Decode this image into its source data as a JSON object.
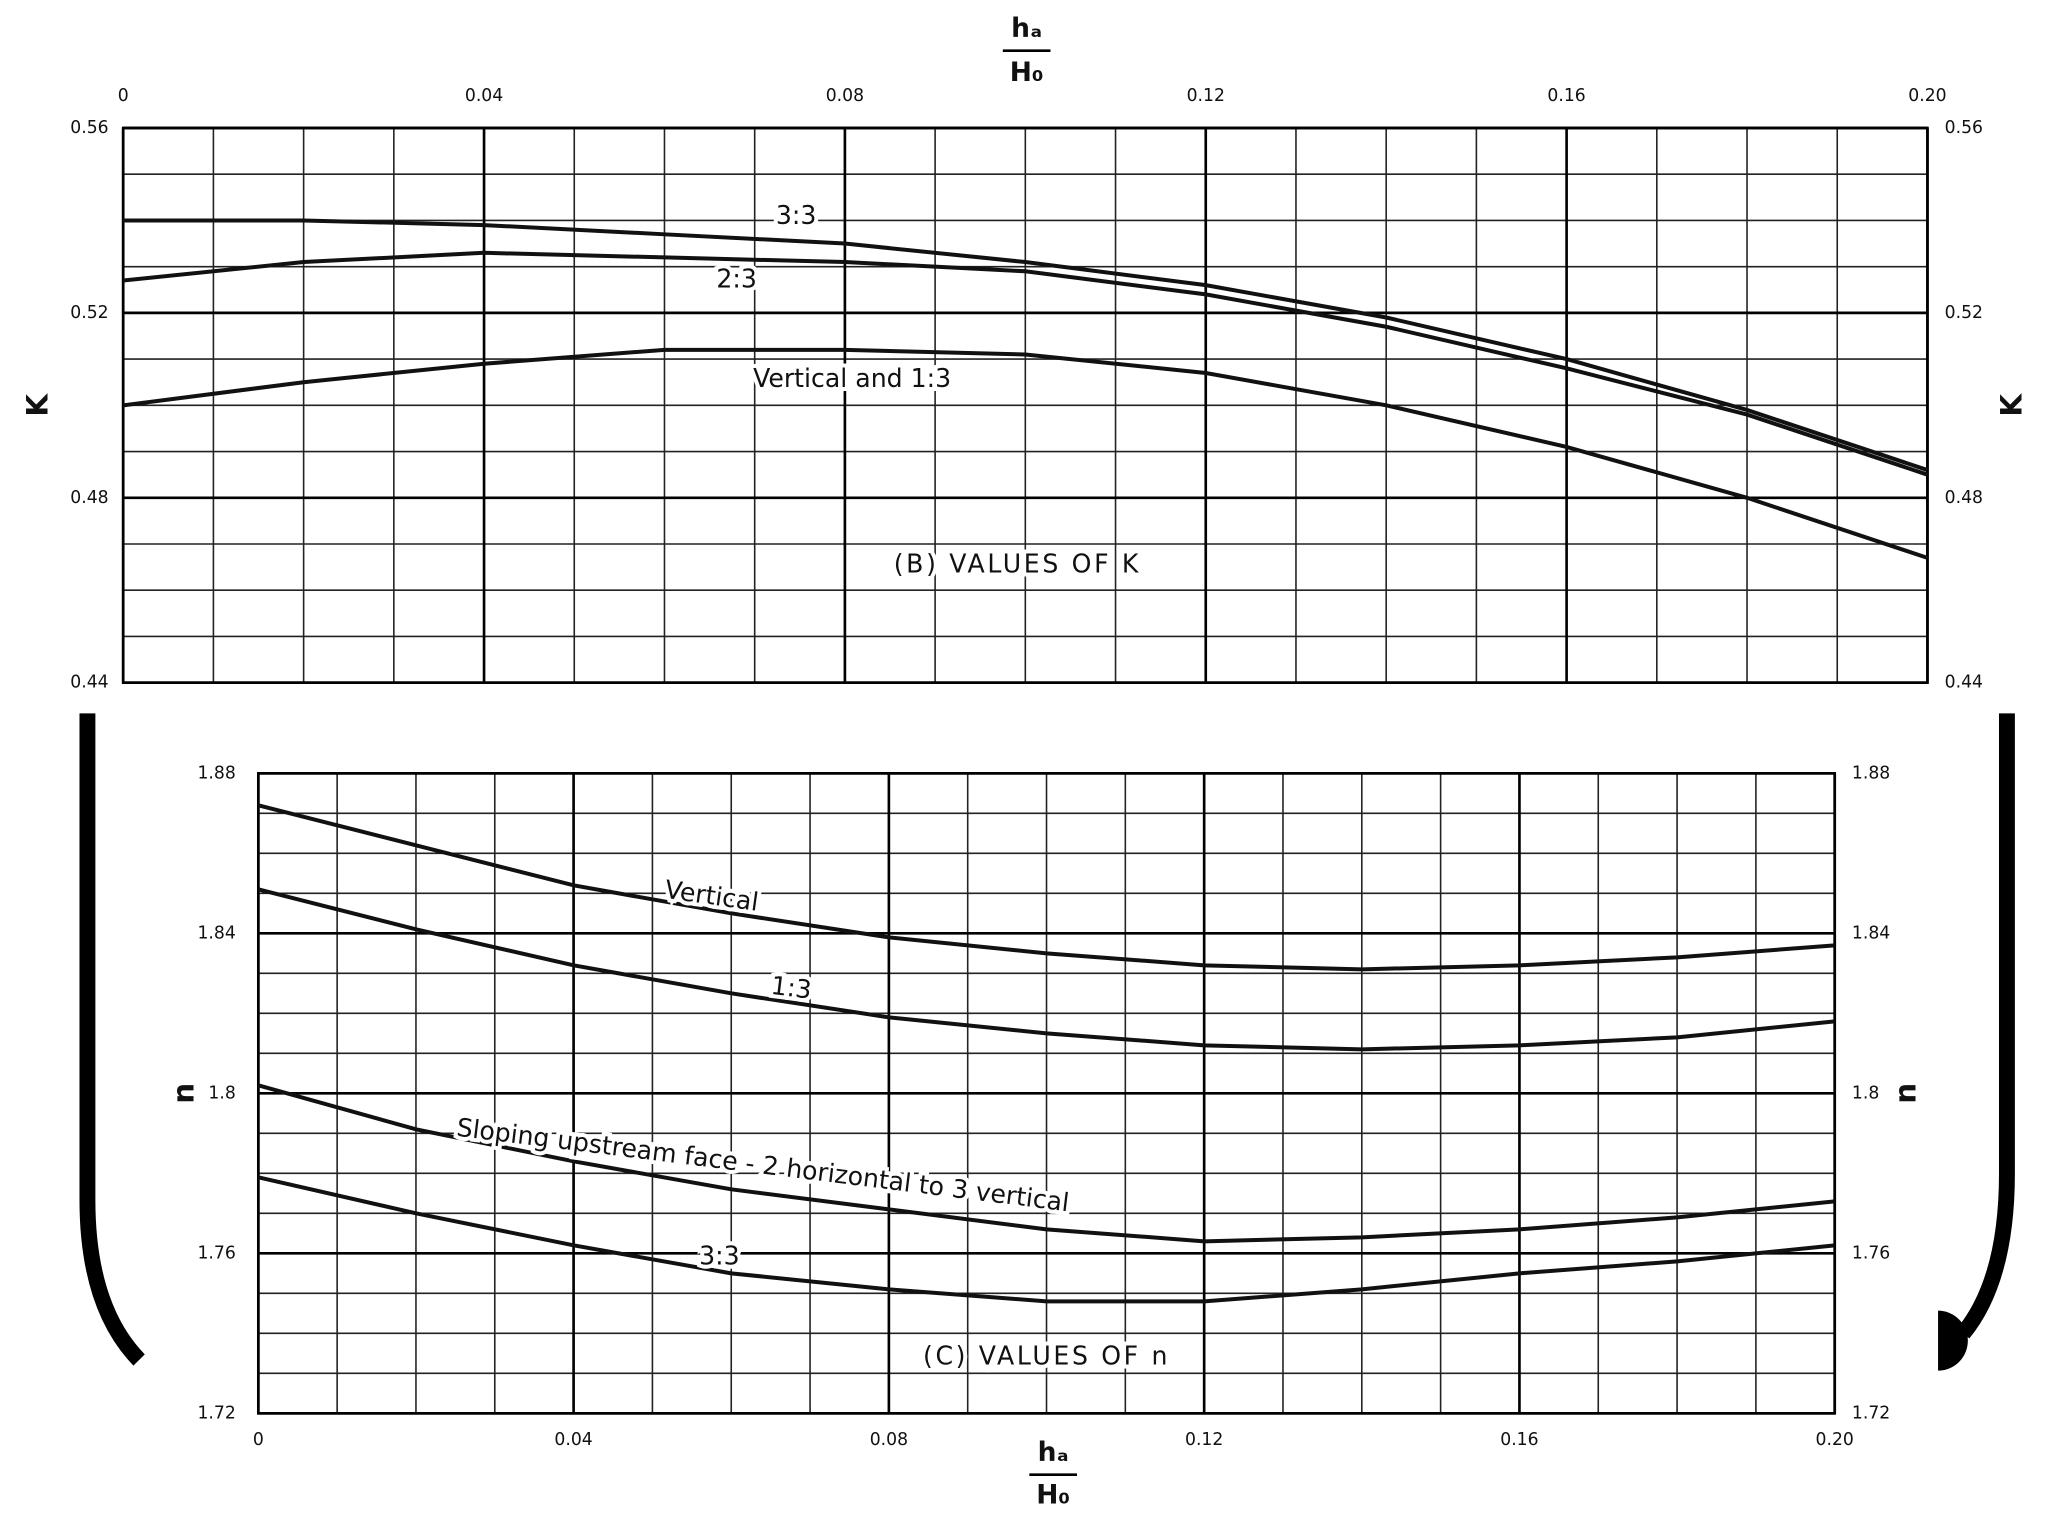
{
  "chart_data": [
    {
      "type": "line",
      "title": "(B) VALUES OF K",
      "ylabel": "K",
      "xlabel_numerator": "hₐ",
      "xlabel_denominator": "H₀",
      "x": [
        0,
        0.02,
        0.04,
        0.06,
        0.08,
        0.1,
        0.12,
        0.14,
        0.16,
        0.18,
        0.2
      ],
      "series": [
        {
          "name": "3:3",
          "color": "#111111",
          "values": [
            0.54,
            0.54,
            0.539,
            0.537,
            0.535,
            0.531,
            0.526,
            0.519,
            0.51,
            0.499,
            0.486
          ]
        },
        {
          "name": "2:3",
          "color": "#111111",
          "values": [
            0.527,
            0.531,
            0.533,
            0.532,
            0.531,
            0.529,
            0.524,
            0.517,
            0.508,
            0.498,
            0.485
          ]
        },
        {
          "name": "Vertical and 1:3",
          "color": "#111111",
          "values": [
            0.5,
            0.505,
            0.509,
            0.512,
            0.512,
            0.511,
            0.507,
            0.5,
            0.491,
            0.48,
            0.467
          ]
        }
      ],
      "xlim": [
        0,
        0.2
      ],
      "xticks": [
        0,
        0.04,
        0.08,
        0.12,
        0.16,
        {
          "value": 0.2,
          "label": "0.20"
        }
      ],
      "ylim": [
        0.44,
        0.56
      ],
      "yticks": [
        0.44,
        0.48,
        0.52,
        0.56
      ],
      "xgrid": [
        0,
        0.01,
        0.02,
        0.03,
        0.04,
        0.05,
        0.06,
        0.07,
        0.08,
        0.09,
        0.1,
        0.11,
        0.12,
        0.13,
        0.14,
        0.15,
        0.16,
        0.17,
        0.18,
        0.19,
        0.2
      ],
      "ygrid": [
        0.44,
        0.45,
        0.46,
        0.47,
        0.48,
        0.49,
        0.5,
        0.51,
        0.52,
        0.53,
        0.54,
        0.55,
        0.56
      ],
      "grid": true
    },
    {
      "type": "line",
      "title": "(C) VALUES OF n",
      "ylabel": "n",
      "xlabel_numerator": "hₐ",
      "xlabel_denominator": "H₀",
      "x": [
        0,
        0.02,
        0.04,
        0.06,
        0.08,
        0.1,
        0.12,
        0.14,
        0.16,
        0.18,
        0.2
      ],
      "series": [
        {
          "name": "Vertical",
          "color": "#111111",
          "values": [
            1.872,
            1.862,
            1.852,
            1.845,
            1.839,
            1.835,
            1.832,
            1.831,
            1.832,
            1.834,
            1.837
          ]
        },
        {
          "name": "1:3",
          "color": "#111111",
          "values": [
            1.851,
            1.841,
            1.832,
            1.825,
            1.819,
            1.815,
            1.812,
            1.811,
            1.812,
            1.814,
            1.818
          ]
        },
        {
          "name": "Sloping upstream face - 2 horizontal to 3 vertical",
          "color": "#111111",
          "values": [
            1.802,
            1.791,
            1.783,
            1.776,
            1.771,
            1.766,
            1.763,
            1.764,
            1.766,
            1.769,
            1.773
          ]
        },
        {
          "name": "3:3",
          "color": "#111111",
          "values": [
            1.779,
            1.77,
            1.762,
            1.755,
            1.751,
            1.748,
            1.748,
            1.751,
            1.755,
            1.758,
            1.762
          ]
        }
      ],
      "xlim": [
        0,
        0.2
      ],
      "xticks": [
        0,
        0.04,
        0.08,
        0.12,
        0.16,
        {
          "value": 0.2,
          "label": "0.20"
        }
      ],
      "ylim": [
        1.72,
        1.88
      ],
      "yticks": [
        1.72,
        1.76,
        1.8,
        {
          "value": 1.84,
          "label": "1.84"
        },
        1.88
      ],
      "xgrid": [
        0,
        0.01,
        0.02,
        0.03,
        0.04,
        0.05,
        0.06,
        0.07,
        0.08,
        0.09,
        0.1,
        0.11,
        0.12,
        0.13,
        0.14,
        0.15,
        0.16,
        0.17,
        0.18,
        0.19,
        0.2
      ],
      "ygrid": [
        1.72,
        1.73,
        1.74,
        1.75,
        1.76,
        1.77,
        1.78,
        1.79,
        1.8,
        1.81,
        1.82,
        1.83,
        1.84,
        1.85,
        1.86,
        1.87,
        1.88
      ],
      "grid": true
    }
  ]
}
